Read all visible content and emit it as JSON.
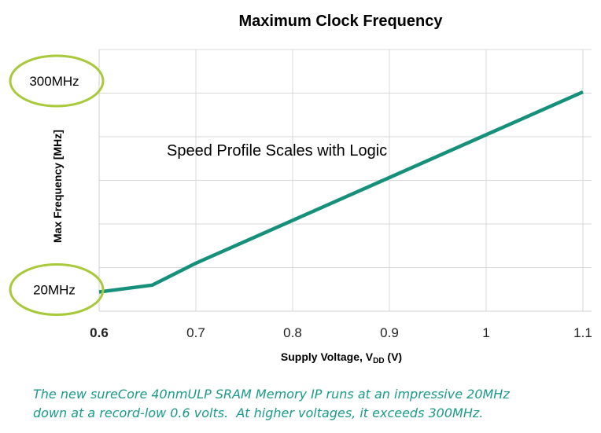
{
  "chart_data": {
    "type": "line",
    "title": "Maximum Clock Frequency",
    "xlabel": "Supply Voltage, V",
    "xlabel_subscript": "DD",
    "xlabel_suffix": " (V)",
    "ylabel": "Max Frequency [MHz]",
    "xlim": [
      0.6,
      1.1
    ],
    "x_ticks": [
      0.6,
      0.7,
      0.8,
      0.9,
      1.0,
      1.1
    ],
    "x_tick_labels": [
      "0.6",
      "0.7",
      "0.8",
      "0.9",
      "1",
      "1.1"
    ],
    "x_tick_bold": [
      true,
      false,
      false,
      false,
      false,
      false
    ],
    "grid": true,
    "series": [
      {
        "color": "#16907a",
        "x": [
          0.6,
          0.655,
          0.7,
          1.1
        ],
        "y": [
          20,
          30,
          62,
          312
        ]
      }
    ],
    "annotations": {
      "center_text": "Speed Profile Scales with Logic",
      "callouts": [
        {
          "label": "300MHz",
          "value": 300
        },
        {
          "label": "20MHz",
          "value": 20
        }
      ],
      "callout_color": "#a8c93a"
    }
  },
  "caption": {
    "line1": "The new sureCore 40nmULP SRAM Memory IP runs at an impressive 20MHz",
    "line2": "down at a record-low 0.6 volts.  At higher voltages, it exceeds 300MHz.",
    "color": "#1a9a8a"
  }
}
